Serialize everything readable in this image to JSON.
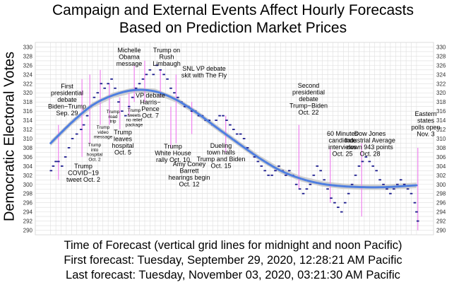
{
  "chart_data": {
    "type": "scatter",
    "title": "Campaign and External Events Affect Hourly Forecasts\nBased on Prediction Market Prices",
    "ylabel": "Democratic Electoral Votes",
    "xlabel": "Time of Forecast (vertical grid lines for midnight and noon Pacific)",
    "x_start_text": "First forecast: Tuesday, September 29, 2020, 12:28:21 AM Pacific",
    "x_end_text": "Last forecast: Tuesday, November 03, 2020, 03:21:30 AM Pacific",
    "x_range": [
      "2020-09-29 00:28",
      "2020-11-03 03:21"
    ],
    "ylim": [
      289,
      331
    ],
    "yticks": [
      290,
      292,
      294,
      296,
      298,
      300,
      302,
      304,
      306,
      308,
      310,
      312,
      314,
      316,
      318,
      320,
      322,
      324,
      326,
      328,
      330
    ],
    "grid": true,
    "colors": {
      "points": "#1a1a8c",
      "smooth": "#4f7fe0",
      "band": "#c6c6c6",
      "event_line": "#ee82ee",
      "panel_bg": "#ffffff",
      "grid": "#dedede"
    },
    "trend": {
      "x": [
        "2020-09-29",
        "2020-10-01",
        "2020-10-03",
        "2020-10-05",
        "2020-10-07",
        "2020-10-09",
        "2020-10-11",
        "2020-10-13",
        "2020-10-15",
        "2020-10-17",
        "2020-10-19",
        "2020-10-21",
        "2020-10-23",
        "2020-10-25",
        "2020-10-27",
        "2020-10-29",
        "2020-10-31",
        "2020-11-03"
      ],
      "y": [
        309.0,
        313.5,
        317.3,
        319.5,
        320.6,
        320.3,
        318.5,
        315.6,
        312.2,
        308.9,
        305.7,
        303.0,
        301.2,
        300.1,
        299.6,
        299.4,
        299.4,
        299.8
      ]
    },
    "series": [
      {
        "x": [
          "2020-09-29 01",
          "2020-09-29 06",
          "2020-09-29 12",
          "2020-09-29 18",
          "2020-09-30 02",
          "2020-09-30 10",
          "2020-09-30 18",
          "2020-10-01 02",
          "2020-10-01 12",
          "2020-10-01 22",
          "2020-10-02 04",
          "2020-10-02 12",
          "2020-10-02 20",
          "2020-10-03 04",
          "2020-10-03 12",
          "2020-10-03 20",
          "2020-10-04 04",
          "2020-10-04 12",
          "2020-10-04 20",
          "2020-10-05 04",
          "2020-10-05 12",
          "2020-10-05 20",
          "2020-10-06 04",
          "2020-10-06 12",
          "2020-10-06 20",
          "2020-10-07 04",
          "2020-10-07 12",
          "2020-10-07 20",
          "2020-10-08 04",
          "2020-10-08 12",
          "2020-10-08 20",
          "2020-10-09 04",
          "2020-10-09 12",
          "2020-10-09 20",
          "2020-10-10 04",
          "2020-10-10 12",
          "2020-10-10 20",
          "2020-10-11 04",
          "2020-10-11 12",
          "2020-10-11 20",
          "2020-10-12 04",
          "2020-10-12 12",
          "2020-10-12 20",
          "2020-10-13 04",
          "2020-10-13 12",
          "2020-10-13 20",
          "2020-10-14 04",
          "2020-10-14 12",
          "2020-10-14 20",
          "2020-10-15 04",
          "2020-10-15 12",
          "2020-10-15 20",
          "2020-10-16 04",
          "2020-10-16 12",
          "2020-10-16 20",
          "2020-10-17 04",
          "2020-10-17 12",
          "2020-10-17 20",
          "2020-10-18 04",
          "2020-10-18 12",
          "2020-10-18 20",
          "2020-10-19 04",
          "2020-10-19 12",
          "2020-10-19 20",
          "2020-10-20 04",
          "2020-10-20 12",
          "2020-10-20 20",
          "2020-10-21 04",
          "2020-10-21 12",
          "2020-10-21 20",
          "2020-10-22 04",
          "2020-10-22 12",
          "2020-10-22 20",
          "2020-10-23 04",
          "2020-10-23 12",
          "2020-10-23 20",
          "2020-10-24 04",
          "2020-10-24 12",
          "2020-10-24 20",
          "2020-10-25 04",
          "2020-10-25 12",
          "2020-10-25 20",
          "2020-10-26 04",
          "2020-10-26 12",
          "2020-10-26 20",
          "2020-10-27 04",
          "2020-10-27 12",
          "2020-10-27 20",
          "2020-10-28 04",
          "2020-10-28 12",
          "2020-10-28 20",
          "2020-10-29 04",
          "2020-10-29 12",
          "2020-10-29 20",
          "2020-10-30 04",
          "2020-10-30 12",
          "2020-10-30 20",
          "2020-10-31 04",
          "2020-10-31 12",
          "2020-10-31 20",
          "2020-11-01 04",
          "2020-11-01 12",
          "2020-11-01 20",
          "2020-11-02 04",
          "2020-11-02 12",
          "2020-11-02 20",
          "2020-11-03 00",
          "2020-11-03 03"
        ],
        "y": [
          303,
          304,
          305,
          305,
          304,
          306,
          308,
          310,
          311,
          312,
          313,
          315,
          317,
          319,
          320,
          322,
          321,
          322,
          323,
          321,
          318,
          316,
          315,
          317,
          319,
          321,
          322,
          323,
          324,
          325,
          324,
          326,
          325,
          324,
          323,
          321,
          320,
          319,
          318,
          317,
          317,
          316,
          316,
          315,
          315,
          314,
          314,
          313,
          314,
          315,
          315,
          314,
          313,
          312,
          311,
          311,
          310,
          308,
          307,
          306,
          305,
          304,
          303,
          302,
          302,
          303,
          304,
          303,
          302,
          303,
          302,
          300,
          299,
          298,
          299,
          300,
          302,
          304,
          303,
          301,
          299,
          297,
          296,
          295,
          294,
          296,
          298,
          300,
          302,
          304,
          305,
          306,
          305,
          304,
          303,
          301,
          300,
          299,
          298,
          299,
          300,
          301,
          300,
          299,
          298,
          296,
          294,
          292
        ]
      }
    ],
    "annotations": [
      {
        "label": "First presidential debate Biden–Trump Sep. 29",
        "x": "2020-09-29 18:00",
        "ymin": 301,
        "ymax": 313
      },
      {
        "label": "Trump COVID−19 tweet Oct. 2",
        "x": "2020-10-02 00:00",
        "ymin": 306,
        "ymax": 323
      },
      {
        "label": "Trump into hospital Oct. 2",
        "x": "2020-10-02 18:00",
        "ymin": 309,
        "ymax": 324
      },
      {
        "label": "Trump video message",
        "x": "2020-10-03 18:00",
        "ymin": 313,
        "ymax": 325
      },
      {
        "label": "Trump road trip",
        "x": "2020-10-04 15:00",
        "ymin": 313,
        "ymax": 322
      },
      {
        "label": "Trump leaves hospital Oct. 5",
        "x": "2020-10-05 15:00",
        "ymin": 312,
        "ymax": 319
      },
      {
        "label": "Trump tweets no relief package",
        "x": "2020-10-06 12:00",
        "ymin": 315,
        "ymax": 320
      },
      {
        "label": "Michelle Obama message",
        "x": "2020-10-07 00:00",
        "ymin": 318,
        "ymax": 326
      },
      {
        "label": "VP debate Harris−Pence Oct. 7",
        "x": "2020-10-08 00:00",
        "ymin": 318,
        "ymax": 327
      },
      {
        "label": "Trump on Rush Limbaugh",
        "x": "2020-10-09 12:00",
        "ymin": 319,
        "ymax": 325
      },
      {
        "label": "Trump White House rally Oct. 10",
        "x": "2020-10-10 12:00",
        "ymin": 308,
        "ymax": 317
      },
      {
        "label": "SNL VP debate skit with The Fly",
        "x": "2020-10-11 00:00",
        "ymin": 309,
        "ymax": 324
      },
      {
        "label": "Amy Coney Barrett hearings begin Oct. 12",
        "x": "2020-10-12 12:00",
        "ymin": 311,
        "ymax": 318
      },
      {
        "label": "Dueling town halls Trump and Biden Oct. 15",
        "x": "2020-10-15 18:00",
        "ymin": 307,
        "ymax": 315
      },
      {
        "label": "Second presidential debate Trump−Biden Oct. 22",
        "x": "2020-10-22 18:00",
        "ymin": 299,
        "ymax": 313
      },
      {
        "label": "60 Minutes candidate interviews Oct. 25",
        "x": "2020-10-25 18:00",
        "ymin": 296,
        "ymax": 308
      },
      {
        "label": "Dow Jones Industrial Average down 943 points Oct. 28",
        "x": "2020-10-28 18:00",
        "ymin": 293,
        "ymax": 309
      },
      {
        "label": "Eastern states polls open Nov. 3",
        "x": "2020-11-03 03:00",
        "ymin": 290,
        "ymax": 308
      }
    ]
  }
}
